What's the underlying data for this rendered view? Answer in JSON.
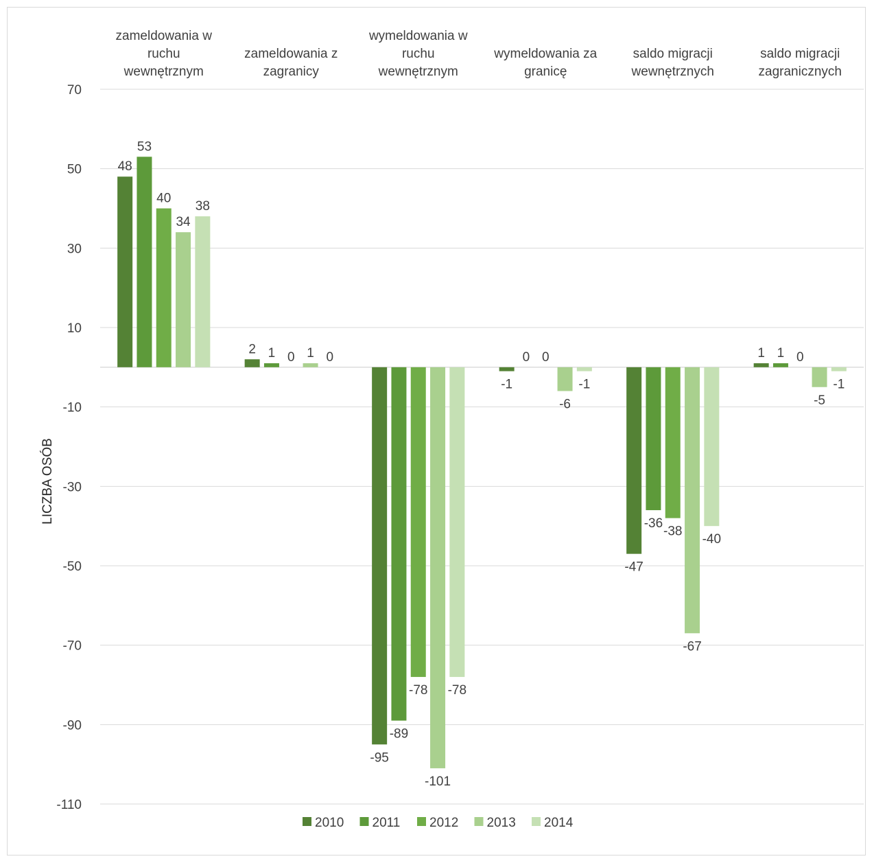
{
  "chart_data": {
    "type": "bar",
    "title": "",
    "xlabel": "",
    "ylabel": "LICZBA OSÓB",
    "ylim": [
      -110,
      70
    ],
    "y_ticks": [
      "70",
      "50",
      "30",
      "10",
      "-10",
      "-30",
      "-50",
      "-70",
      "-90",
      "-110"
    ],
    "grid": true,
    "legend_position": "bottom",
    "categories": [
      [
        "zameldowania w",
        "ruchu",
        "wewnętrznym"
      ],
      [
        "zameldowania z",
        "zagranicy"
      ],
      [
        "wymeldowania w",
        "ruchu",
        "wewnętrznym"
      ],
      [
        "wymeldowania za",
        "granicę"
      ],
      [
        "saldo migracji",
        "wewnętrznych"
      ],
      [
        "saldo migracji",
        "zagranicznych"
      ]
    ],
    "series": [
      {
        "name": "2010",
        "color": "#548235",
        "values": [
          48,
          2,
          -95,
          -1,
          -47,
          1
        ]
      },
      {
        "name": "2011",
        "color": "#5d9a3a",
        "values": [
          53,
          1,
          -89,
          0,
          -36,
          1
        ]
      },
      {
        "name": "2012",
        "color": "#70ad47",
        "values": [
          40,
          0,
          -78,
          0,
          -38,
          0
        ]
      },
      {
        "name": "2013",
        "color": "#a9d08e",
        "values": [
          34,
          1,
          -101,
          -6,
          -67,
          -5
        ]
      },
      {
        "name": "2014",
        "color": "#c5e0b4",
        "values": [
          38,
          0,
          -78,
          -1,
          -40,
          -1
        ]
      }
    ]
  }
}
